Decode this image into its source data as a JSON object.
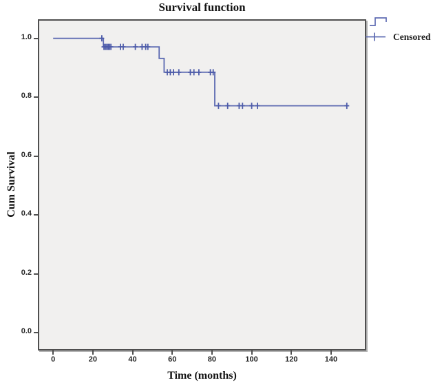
{
  "title": "Survival function",
  "legend": {
    "survival_icon": "step-line-icon",
    "censored_icon": "plus-marker-icon",
    "censored_label": "Censored"
  },
  "colors": {
    "line": "#5e6bb2",
    "marker": "#4d5ba9",
    "plot_background": "#f1f0ef",
    "frame": "#4f4f4f",
    "tick": "#4f4f4f"
  },
  "chart_data": {
    "type": "line",
    "subtype": "kaplan-meier-step",
    "title": "Survival function",
    "xlabel": "Time (months)",
    "ylabel": "Cum Survival",
    "xlim": [
      -7,
      157
    ],
    "ylim": [
      -0.055,
      1.06
    ],
    "x_ticks": [
      0,
      20,
      40,
      60,
      80,
      100,
      120,
      140
    ],
    "x_tick_labels": [
      "0",
      "20",
      "40",
      "60",
      "80",
      "100",
      "120",
      "140"
    ],
    "y_ticks": [
      0.0,
      0.2,
      0.4,
      0.6,
      0.8,
      1.0
    ],
    "y_tick_labels": [
      "0.0",
      "0.2",
      "0.4",
      "0.6",
      "0.8",
      "1.0"
    ],
    "grid": false,
    "legend_position": "top-right-outside",
    "series": [
      {
        "name": "Survival function",
        "step_points": [
          [
            0,
            1.0
          ],
          [
            25.3,
            1.0
          ],
          [
            25.3,
            0.971
          ],
          [
            53.4,
            0.971
          ],
          [
            53.4,
            0.932
          ],
          [
            55.9,
            0.932
          ],
          [
            55.9,
            0.885
          ],
          [
            81.4,
            0.885
          ],
          [
            81.4,
            0.771
          ],
          [
            148.3,
            0.771
          ]
        ],
        "event_times": [
          25.3,
          53.4,
          55.9,
          81.4
        ],
        "survival_levels": [
          1.0,
          0.971,
          0.932,
          0.885,
          0.771
        ]
      }
    ],
    "censored": {
      "name": "Censored",
      "marker": "plus",
      "points": [
        [
          24.5,
          1.0
        ],
        [
          25.6,
          0.971
        ],
        [
          26.3,
          0.971
        ],
        [
          27.0,
          0.971
        ],
        [
          27.7,
          0.971
        ],
        [
          28.4,
          0.971
        ],
        [
          29.1,
          0.971
        ],
        [
          33.9,
          0.971
        ],
        [
          35.3,
          0.971
        ],
        [
          41.4,
          0.971
        ],
        [
          44.8,
          0.971
        ],
        [
          46.6,
          0.971
        ],
        [
          47.7,
          0.971
        ],
        [
          57.5,
          0.885
        ],
        [
          59.0,
          0.885
        ],
        [
          60.6,
          0.885
        ],
        [
          63.3,
          0.885
        ],
        [
          69.1,
          0.885
        ],
        [
          70.9,
          0.885
        ],
        [
          73.4,
          0.885
        ],
        [
          79.2,
          0.885
        ],
        [
          80.6,
          0.885
        ],
        [
          83.3,
          0.771
        ],
        [
          87.9,
          0.771
        ],
        [
          93.7,
          0.771
        ],
        [
          95.4,
          0.771
        ],
        [
          100.0,
          0.771
        ],
        [
          102.9,
          0.771
        ],
        [
          147.9,
          0.771
        ]
      ]
    }
  }
}
